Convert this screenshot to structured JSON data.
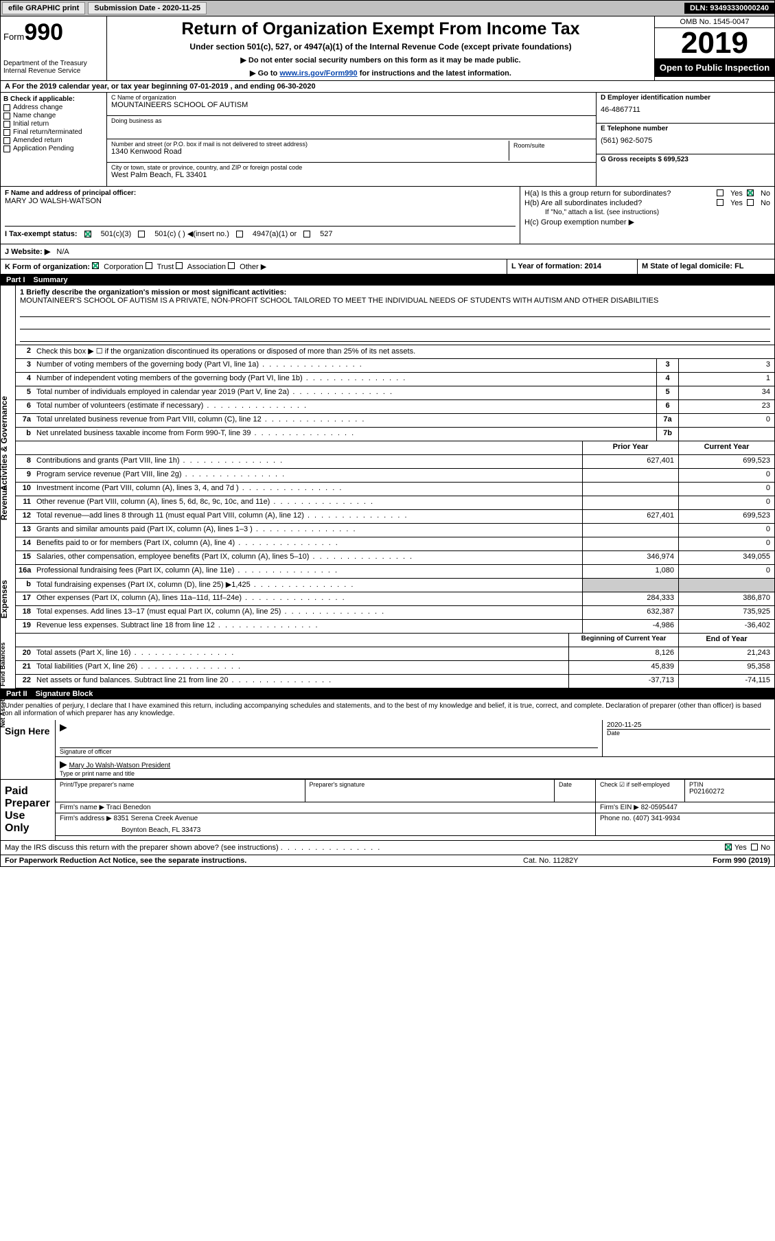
{
  "topbar": {
    "efile": "efile GRAPHIC print",
    "submission_label": "Submission Date - 2020-11-25",
    "dln": "DLN: 93493330000240"
  },
  "header": {
    "form_word": "Form",
    "form_num": "990",
    "dept": "Department of the Treasury\nInternal Revenue Service",
    "title": "Return of Organization Exempt From Income Tax",
    "subtitle": "Under section 501(c), 527, or 4947(a)(1) of the Internal Revenue Code (except private foundations)",
    "note1": "▶ Do not enter social security numbers on this form as it may be made public.",
    "note2_pre": "▶ Go to ",
    "note2_link": "www.irs.gov/Form990",
    "note2_post": " for instructions and the latest information.",
    "omb": "OMB No. 1545-0047",
    "year": "2019",
    "open_public": "Open to Public Inspection"
  },
  "row_a": "A For the 2019 calendar year, or tax year beginning 07-01-2019    , and ending 06-30-2020",
  "b": {
    "label": "B Check if applicable:",
    "items": [
      "Address change",
      "Name change",
      "Initial return",
      "Final return/terminated",
      "Amended return",
      "Application Pending"
    ]
  },
  "c": {
    "name_label": "C Name of organization",
    "name": "MOUNTAINEERS SCHOOL OF AUTISM",
    "dba_label": "Doing business as",
    "addr_label": "Number and street (or P.O. box if mail is not delivered to street address)",
    "room_label": "Room/suite",
    "addr": "1340 Kenwood Road",
    "city_label": "City or town, state or province, country, and ZIP or foreign postal code",
    "city": "West Palm Beach, FL  33401"
  },
  "d": {
    "ein_label": "D Employer identification number",
    "ein": "46-4867711",
    "tel_label": "E Telephone number",
    "tel": "(561) 962-5075",
    "gross_label": "G Gross receipts $ 699,523"
  },
  "f": {
    "label": "F  Name and address of principal officer:",
    "name": "MARY JO WALSH-WATSON"
  },
  "h": {
    "a": "H(a)  Is this a group return for subordinates?",
    "b": "H(b)  Are all subordinates included?",
    "b_note": "If \"No,\" attach a list. (see instructions)",
    "c": "H(c)  Group exemption number ▶",
    "yes": "Yes",
    "no": "No"
  },
  "i": {
    "label": "I   Tax-exempt status:",
    "o1": "501(c)(3)",
    "o2": "501(c) (  ) ◀(insert no.)",
    "o3": "4947(a)(1) or",
    "o4": "527"
  },
  "j": {
    "label": "J   Website: ▶",
    "val": "N/A"
  },
  "k": {
    "label": "K Form of organization:",
    "o1": "Corporation",
    "o2": "Trust",
    "o3": "Association",
    "o4": "Other ▶",
    "l": "L Year of formation: 2014",
    "m": "M State of legal domicile: FL"
  },
  "part1": {
    "num": "Part I",
    "title": "Summary"
  },
  "mission": {
    "label": "1  Briefly describe the organization's mission or most significant activities:",
    "text": "MOUNTAINEER'S SCHOOL OF AUTISM IS A PRIVATE, NON-PROFIT SCHOOL TAILORED TO MEET THE INDIVIDUAL NEEDS OF STUDENTS WITH AUTISM AND OTHER DISABILITIES"
  },
  "line2": "Check this box ▶ ☐  if the organization discontinued its operations or disposed of more than 25% of its net assets.",
  "tabs": {
    "gov": "Activities & Governance",
    "rev": "Revenue",
    "exp": "Expenses",
    "net": "Net Assets or Fund Balances"
  },
  "gov_rows": [
    {
      "n": "3",
      "t": "Number of voting members of the governing body (Part VI, line 1a)",
      "b": "3",
      "v": "3"
    },
    {
      "n": "4",
      "t": "Number of independent voting members of the governing body (Part VI, line 1b)",
      "b": "4",
      "v": "1"
    },
    {
      "n": "5",
      "t": "Total number of individuals employed in calendar year 2019 (Part V, line 2a)",
      "b": "5",
      "v": "34"
    },
    {
      "n": "6",
      "t": "Total number of volunteers (estimate if necessary)",
      "b": "6",
      "v": "23"
    },
    {
      "n": "7a",
      "t": "Total unrelated business revenue from Part VIII, column (C), line 12",
      "b": "7a",
      "v": "0"
    },
    {
      "n": "b",
      "t": "Net unrelated business taxable income from Form 990-T, line 39",
      "b": "7b",
      "v": ""
    }
  ],
  "col_hdr": {
    "py": "Prior Year",
    "cy": "Current Year"
  },
  "rev_rows": [
    {
      "n": "8",
      "t": "Contributions and grants (Part VIII, line 1h)",
      "py": "627,401",
      "cy": "699,523"
    },
    {
      "n": "9",
      "t": "Program service revenue (Part VIII, line 2g)",
      "py": "",
      "cy": "0"
    },
    {
      "n": "10",
      "t": "Investment income (Part VIII, column (A), lines 3, 4, and 7d )",
      "py": "",
      "cy": "0"
    },
    {
      "n": "11",
      "t": "Other revenue (Part VIII, column (A), lines 5, 6d, 8c, 9c, 10c, and 11e)",
      "py": "",
      "cy": "0"
    },
    {
      "n": "12",
      "t": "Total revenue—add lines 8 through 11 (must equal Part VIII, column (A), line 12)",
      "py": "627,401",
      "cy": "699,523"
    }
  ],
  "exp_rows": [
    {
      "n": "13",
      "t": "Grants and similar amounts paid (Part IX, column (A), lines 1–3 )",
      "py": "",
      "cy": "0"
    },
    {
      "n": "14",
      "t": "Benefits paid to or for members (Part IX, column (A), line 4)",
      "py": "",
      "cy": "0"
    },
    {
      "n": "15",
      "t": "Salaries, other compensation, employee benefits (Part IX, column (A), lines 5–10)",
      "py": "346,974",
      "cy": "349,055"
    },
    {
      "n": "16a",
      "t": "Professional fundraising fees (Part IX, column (A), line 11e)",
      "py": "1,080",
      "cy": "0"
    },
    {
      "n": "b",
      "t": "Total fundraising expenses (Part IX, column (D), line 25) ▶1,425",
      "py": "__SHADE__",
      "cy": "__SHADE__"
    },
    {
      "n": "17",
      "t": "Other expenses (Part IX, column (A), lines 11a–11d, 11f–24e)",
      "py": "284,333",
      "cy": "386,870"
    },
    {
      "n": "18",
      "t": "Total expenses. Add lines 13–17 (must equal Part IX, column (A), line 25)",
      "py": "632,387",
      "cy": "735,925"
    },
    {
      "n": "19",
      "t": "Revenue less expenses. Subtract line 18 from line 12",
      "py": "-4,986",
      "cy": "-36,402"
    }
  ],
  "net_hdr": {
    "b": "Beginning of Current Year",
    "e": "End of Year"
  },
  "net_rows": [
    {
      "n": "20",
      "t": "Total assets (Part X, line 16)",
      "py": "8,126",
      "cy": "21,243"
    },
    {
      "n": "21",
      "t": "Total liabilities (Part X, line 26)",
      "py": "45,839",
      "cy": "95,358"
    },
    {
      "n": "22",
      "t": "Net assets or fund balances. Subtract line 21 from line 20",
      "py": "-37,713",
      "cy": "-74,115"
    }
  ],
  "part2": {
    "num": "Part II",
    "title": "Signature Block"
  },
  "sig": {
    "perjury": "Under penalties of perjury, I declare that I have examined this return, including accompanying schedules and statements, and to the best of my knowledge and belief, it is true, correct, and complete. Declaration of preparer (other than officer) is based on all information of which preparer has any knowledge.",
    "sign_here": "Sign Here",
    "sig_officer": "Signature of officer",
    "date_label": "Date",
    "date": "2020-11-25",
    "name_title": "Mary Jo Walsh-Watson  President",
    "name_sub": "Type or print name and title",
    "paid": "Paid Preparer Use Only",
    "prep_name_label": "Print/Type preparer's name",
    "prep_sig_label": "Preparer's signature",
    "check_label": "Check ☑  if self-employed",
    "ptin_label": "PTIN",
    "ptin": "P02160272",
    "firm_name_label": "Firm's name   ▶",
    "firm_name": "Traci Benedon",
    "firm_ein_label": "Firm's EIN ▶",
    "firm_ein": "82-0595447",
    "firm_addr_label": "Firm's address ▶",
    "firm_addr1": "8351 Serena Creek Avenue",
    "firm_addr2": "Boynton Beach, FL  33473",
    "phone_label": "Phone no.",
    "phone": "(407) 341-9934",
    "discuss": "May the IRS discuss this return with the preparer shown above? (see instructions)"
  },
  "footer": {
    "l": "For Paperwork Reduction Act Notice, see the separate instructions.",
    "m": "Cat. No. 11282Y",
    "r": "Form 990 (2019)"
  }
}
